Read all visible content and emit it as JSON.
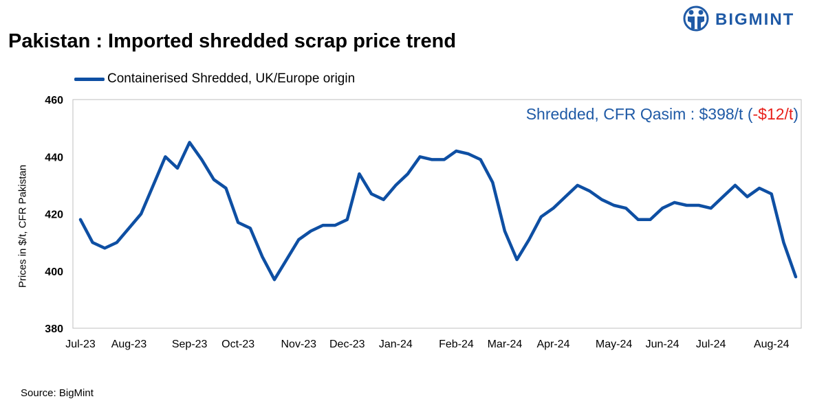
{
  "title": "Pakistan : Imported shredded scrap price trend",
  "brand": {
    "name": "BIGMINT",
    "color": "#1f5aa6",
    "icon": "bigmint-logo-icon"
  },
  "source": "Source: BigMint",
  "annotation": {
    "prefix": "Shredded, CFR Qasim : $398/t (",
    "change": "-$12/t",
    "suffix": ")",
    "prefix_color": "#1f5aa6",
    "change_color": "#e8201a"
  },
  "chart_data": {
    "type": "line",
    "title": "Pakistan : Imported shredded scrap price trend",
    "ylabel": "Prices in $/t, CFR Pakistan",
    "xlabel": "",
    "ylim": [
      380,
      460
    ],
    "yticks": [
      380,
      400,
      420,
      440,
      460
    ],
    "grid": false,
    "legend_position": "top-left",
    "x_tick_labels": [
      {
        "label": "Jul-23",
        "index": 0
      },
      {
        "label": "Aug-23",
        "index": 4
      },
      {
        "label": "Sep-23",
        "index": 9
      },
      {
        "label": "Oct-23",
        "index": 13
      },
      {
        "label": "Nov-23",
        "index": 18
      },
      {
        "label": "Dec-23",
        "index": 22
      },
      {
        "label": "Jan-24",
        "index": 26
      },
      {
        "label": "Feb-24",
        "index": 31
      },
      {
        "label": "Mar-24",
        "index": 35
      },
      {
        "label": "Apr-24",
        "index": 39
      },
      {
        "label": "May-24",
        "index": 44
      },
      {
        "label": "Jun-24",
        "index": 48
      },
      {
        "label": "Jul-24",
        "index": 52
      },
      {
        "label": "Aug-24",
        "index": 57
      }
    ],
    "series": [
      {
        "name": "Containerised Shredded, UK/Europe origin",
        "color": "#0e4fa3",
        "values": [
          418,
          410,
          408,
          410,
          415,
          420,
          430,
          440,
          436,
          445,
          439,
          432,
          429,
          417,
          415,
          405,
          397,
          404,
          411,
          414,
          416,
          416,
          418,
          434,
          427,
          425,
          430,
          434,
          440,
          439,
          439,
          442,
          441,
          439,
          431,
          414,
          404,
          411,
          419,
          422,
          426,
          430,
          428,
          425,
          423,
          422,
          418,
          418,
          422,
          424,
          423,
          423,
          422,
          426,
          430,
          426,
          429,
          427,
          410,
          398
        ]
      }
    ]
  }
}
